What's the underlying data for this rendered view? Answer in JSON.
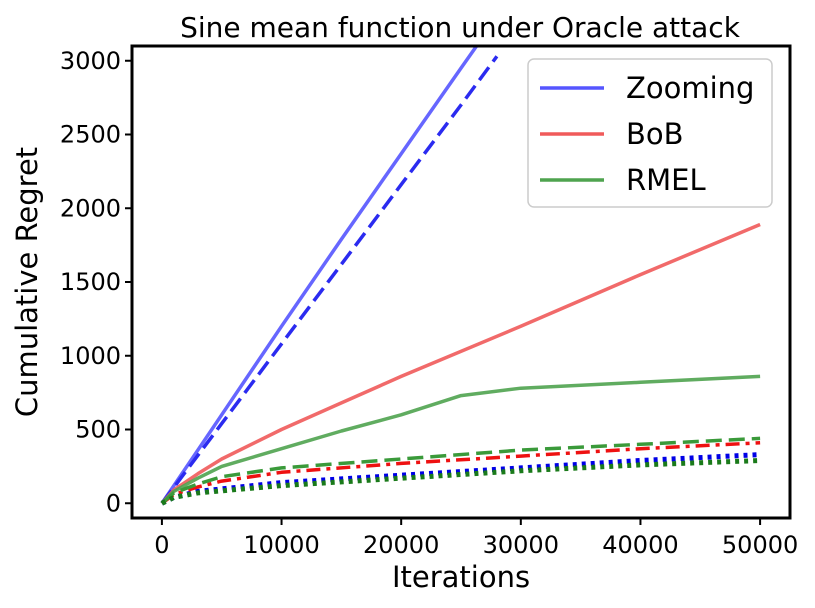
{
  "chart_data": {
    "type": "line",
    "title": "Sine mean function under Oracle attack",
    "xlabel": "Iterations",
    "ylabel": "Cumulative Regret",
    "xlim": [
      -2500,
      52500
    ],
    "ylim": [
      -100,
      3100
    ],
    "xticks": [
      0,
      10000,
      20000,
      30000,
      40000,
      50000
    ],
    "yticks": [
      0,
      500,
      1000,
      1500,
      2000,
      2500,
      3000
    ],
    "grid": false,
    "legend_position": "top-right",
    "legend": [
      {
        "label": "Zooming",
        "color": "#5555ff"
      },
      {
        "label": "BoB",
        "color": "#f05a5a"
      },
      {
        "label": "RMEL",
        "color": "#4fa34f"
      }
    ],
    "series": [
      {
        "name": "Zooming",
        "style": "solid",
        "color": "#5555ff",
        "x": [
          0,
          5000,
          10000,
          15000,
          20000,
          25000,
          26300
        ],
        "y": [
          0,
          600,
          1200,
          1790,
          2370,
          2950,
          3100
        ]
      },
      {
        "name": "Zooming (dashed)",
        "style": "dashed",
        "color": "#2b2bf0",
        "x": [
          0,
          5000,
          10000,
          15000,
          20000,
          25000,
          28000
        ],
        "y": [
          0,
          540,
          1080,
          1620,
          2160,
          2700,
          3030
        ]
      },
      {
        "name": "Zooming (dotted)",
        "style": "dotted",
        "color": "#0000e6",
        "x": [
          0,
          1000,
          3000,
          10000,
          20000,
          30000,
          40000,
          50000
        ],
        "y": [
          0,
          40,
          80,
          140,
          190,
          240,
          290,
          330
        ]
      },
      {
        "name": "BoB",
        "style": "solid",
        "color": "#f05a5a",
        "x": [
          0,
          1000,
          3000,
          5000,
          10000,
          15000,
          20000,
          30000,
          40000,
          50000
        ],
        "y": [
          0,
          90,
          200,
          300,
          500,
          680,
          860,
          1200,
          1550,
          1890
        ]
      },
      {
        "name": "BoB (dashdot)",
        "style": "dashdot",
        "color": "#ee1111",
        "x": [
          0,
          1000,
          3000,
          5000,
          10000,
          20000,
          30000,
          40000,
          50000
        ],
        "y": [
          0,
          60,
          110,
          150,
          210,
          270,
          320,
          370,
          410
        ]
      },
      {
        "name": "RMEL",
        "style": "solid",
        "color": "#4fa34f",
        "x": [
          0,
          1000,
          3000,
          5000,
          10000,
          15000,
          20000,
          25000,
          30000,
          40000,
          50000
        ],
        "y": [
          0,
          80,
          170,
          250,
          370,
          490,
          600,
          730,
          780,
          820,
          860
        ]
      },
      {
        "name": "RMEL (dashed)",
        "style": "dashed",
        "color": "#3a9a3a",
        "x": [
          0,
          1000,
          3000,
          5000,
          10000,
          20000,
          30000,
          40000,
          50000
        ],
        "y": [
          0,
          70,
          130,
          180,
          240,
          300,
          360,
          400,
          440
        ]
      },
      {
        "name": "RMEL (dotted)",
        "style": "dotted",
        "color": "#1a7a1a",
        "x": [
          0,
          1000,
          3000,
          10000,
          20000,
          30000,
          40000,
          50000
        ],
        "y": [
          0,
          40,
          70,
          120,
          170,
          220,
          260,
          290
        ]
      }
    ]
  }
}
